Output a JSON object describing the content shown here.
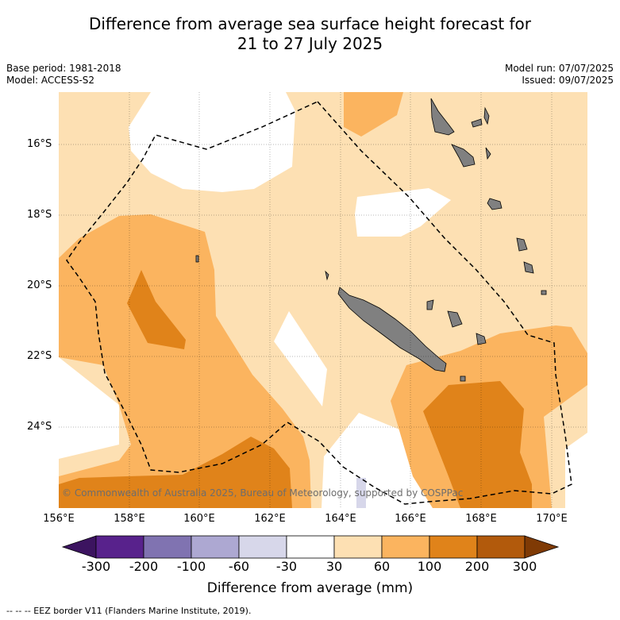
{
  "title_line1": "Difference from average sea surface height forecast for",
  "title_line2": "21 to 27 July 2025",
  "meta_left": [
    "Base period: 1981-2018",
    "Model: ACCESS-S2"
  ],
  "meta_right": [
    "Model run: 07/07/2025",
    "Issued: 09/07/2025"
  ],
  "lat_labels": [
    "16°S",
    "18°S",
    "20°S",
    "22°S",
    "24°S"
  ],
  "lon_labels": [
    "156°E",
    "158°E",
    "160°E",
    "162°E",
    "164°E",
    "166°E",
    "168°E",
    "170°E"
  ],
  "copyright": "© Commonwealth of Australia 2025, Bureau of Meteorology, supported by COSPPac",
  "colorbar": {
    "title": "Difference from average (mm)",
    "ticks": [
      "-300",
      "-200",
      "-100",
      "-60",
      "-30",
      "30",
      "60",
      "100",
      "200",
      "300"
    ],
    "colors": [
      "#3c1460",
      "#58228c",
      "#8073b1",
      "#ada8d2",
      "#d7d7ea",
      "#ffffff",
      "#fde0b3",
      "#fbb45f",
      "#e0831a",
      "#b25a0c",
      "#7f3a05"
    ],
    "land_color": "#808080"
  },
  "footer": "--  --  -- EEZ border V11 (Flanders Marine Institute, 2019)."
}
